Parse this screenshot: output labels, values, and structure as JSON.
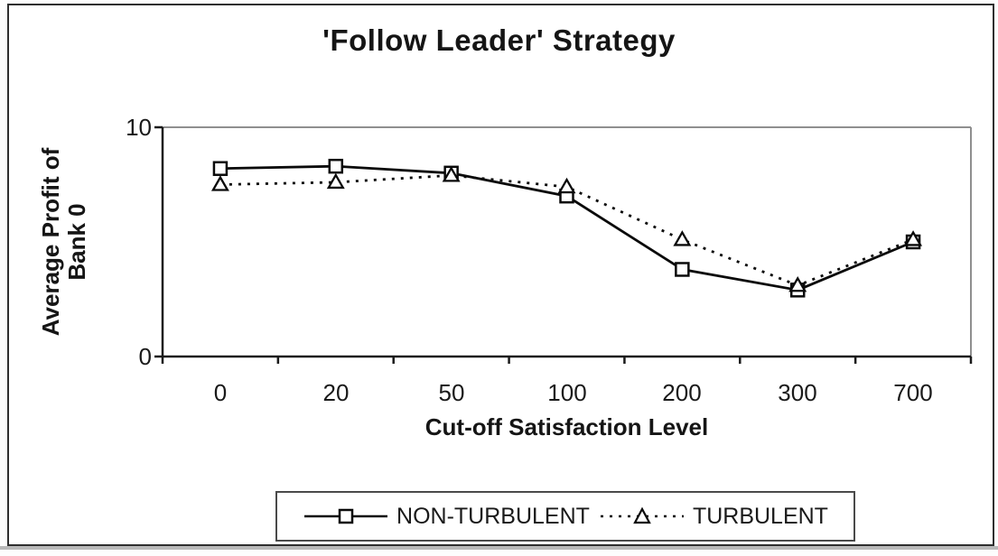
{
  "chart_data": {
    "type": "line",
    "title": "'Follow Leader' Strategy",
    "xlabel": "Cut-off Satisfaction Level",
    "ylabel": "Average Profit of Bank 0",
    "ylabel_lines": [
      "Average Profit of",
      "Bank 0"
    ],
    "categories": [
      "0",
      "20",
      "50",
      "100",
      "200",
      "300",
      "700"
    ],
    "y_tick_labels": [
      "10",
      "0"
    ],
    "ylim": [
      0,
      10
    ],
    "grid": false,
    "legend_position": "bottom",
    "series": [
      {
        "name": "NON-TURBULENT",
        "marker": "square",
        "line_style": "solid",
        "values": [
          8.2,
          8.3,
          8.0,
          7.0,
          3.8,
          2.9,
          5.0
        ]
      },
      {
        "name": "TURBULENT",
        "marker": "triangle",
        "line_style": "dashed",
        "values": [
          7.5,
          7.6,
          7.9,
          7.4,
          5.1,
          3.1,
          5.1
        ]
      }
    ],
    "colors": {
      "line": "#0a0a0a",
      "marker_fill": "#ffffff",
      "plot_frame": "#8f8f8f",
      "axis": "#1a1a1a"
    }
  }
}
